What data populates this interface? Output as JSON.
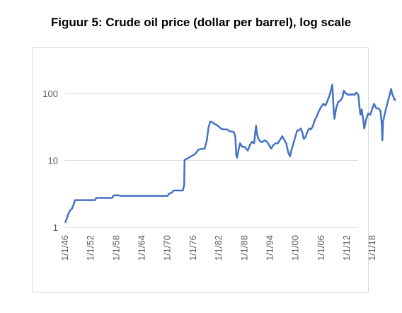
{
  "title": "Figuur 5: Crude oil price (dollar per barrel), log scale",
  "chart_data": {
    "type": "line",
    "title": "Figuur 5: Crude oil price (dollar per barrel), log scale",
    "xlabel": "",
    "ylabel": "",
    "y_scale": "log",
    "ylim": [
      1,
      200
    ],
    "grid": "horizontal",
    "legend": "none",
    "line_color": "#4472c4",
    "y_ticks": [
      {
        "value": 1,
        "label": "1"
      },
      {
        "value": 10,
        "label": "10"
      },
      {
        "value": 100,
        "label": "100"
      }
    ],
    "x_ticks": [
      {
        "value": 1946,
        "label": "1/1/46"
      },
      {
        "value": 1952,
        "label": "1/1/52"
      },
      {
        "value": 1958,
        "label": "1/1/58"
      },
      {
        "value": 1964,
        "label": "1/1/64"
      },
      {
        "value": 1970,
        "label": "1/1/70"
      },
      {
        "value": 1976,
        "label": "1/1/76"
      },
      {
        "value": 1982,
        "label": "1/1/82"
      },
      {
        "value": 1988,
        "label": "1/1/88"
      },
      {
        "value": 1994,
        "label": "1/1/94"
      },
      {
        "value": 2000,
        "label": "1/1/00"
      },
      {
        "value": 2006,
        "label": "1/1/06"
      },
      {
        "value": 2012,
        "label": "1/1/12"
      },
      {
        "value": 2018,
        "label": "1/1/18"
      }
    ],
    "xlim": [
      1946,
      2022
    ],
    "series": [
      {
        "x": [
          1946.0,
          1946.3,
          1946.8,
          1947.2,
          1947.6,
          1948.0,
          1948.3,
          1953.0,
          1953.3,
          1957.0,
          1957.4,
          1958.6,
          1959.0,
          1970.0,
          1970.4,
          1971.0,
          1971.4,
          1973.6,
          1973.9,
          1974.0,
          1975.0,
          1975.5,
          1976.5,
          1977.2,
          1978.0,
          1978.7,
          1979.2,
          1979.6,
          1980.0,
          1980.6,
          1981.0,
          1981.5,
          1982.0,
          1982.5,
          1983.0,
          1983.5,
          1984.0,
          1984.6,
          1985.2,
          1985.6,
          1985.9,
          1986.1,
          1986.3,
          1986.6,
          1987.0,
          1987.5,
          1988.0,
          1988.4,
          1988.8,
          1989.3,
          1989.8,
          1990.3,
          1990.55,
          1990.75,
          1990.95,
          1991.3,
          1991.8,
          1992.3,
          1992.8,
          1993.3,
          1993.8,
          1994.3,
          1994.8,
          1995.3,
          1995.8,
          1996.3,
          1996.9,
          1997.4,
          1997.8,
          1998.3,
          1998.7,
          1999.0,
          1999.4,
          1999.8,
          2000.4,
          2000.8,
          2001.2,
          2001.6,
          2001.9,
          2002.3,
          2002.8,
          2003.2,
          2003.6,
          2004.0,
          2004.5,
          2005.0,
          2005.5,
          2006.0,
          2006.5,
          2007.0,
          2007.5,
          2008.0,
          2008.4,
          2008.6,
          2008.9,
          2009.1,
          2009.5,
          2010.0,
          2010.5,
          2011.0,
          2011.3,
          2011.8,
          2012.3,
          2012.8,
          2013.3,
          2013.8,
          2014.3,
          2014.7,
          2015.0,
          2015.2,
          2015.5,
          2015.8,
          2016.1,
          2016.5,
          2017.0,
          2017.5,
          2018.0,
          2018.4,
          2018.9,
          2019.4,
          2019.9,
          2020.2,
          2020.35,
          2020.5,
          2020.8,
          2021.2,
          2021.5,
          2021.8,
          2022.2,
          2022.4,
          2022.6,
          2022.9,
          2023.2,
          2023.5
        ],
        "values": [
          1.17,
          1.3,
          1.6,
          1.8,
          1.9,
          2.2,
          2.55,
          2.55,
          2.75,
          2.75,
          3.0,
          3.0,
          2.95,
          2.95,
          3.2,
          3.3,
          3.55,
          3.55,
          4.3,
          10.1,
          11.0,
          11.5,
          12.5,
          14.4,
          14.9,
          14.9,
          20,
          31,
          38,
          37,
          35,
          34,
          32,
          30,
          29,
          29,
          29,
          27,
          27,
          26,
          22,
          12,
          11,
          14,
          18,
          16,
          16,
          15,
          14,
          17,
          19,
          18,
          26,
          33,
          25,
          21,
          19,
          19,
          20,
          19,
          17,
          15,
          17,
          18,
          18,
          20,
          23,
          20,
          18,
          13,
          11.5,
          14,
          17,
          21,
          28,
          28,
          30,
          26,
          21,
          22,
          27,
          30,
          29,
          32,
          40,
          46,
          55,
          63,
          70,
          66,
          78,
          95,
          120,
          135,
          60,
          42,
          60,
          75,
          78,
          88,
          110,
          100,
          96,
          96,
          97,
          96,
          103,
          95,
          60,
          48,
          58,
          43,
          30,
          40,
          50,
          48,
          60,
          70,
          60,
          60,
          55,
          35,
          20,
          38,
          46,
          60,
          71,
          83,
          105,
          117,
          100,
          90,
          80,
          82
        ]
      }
    ]
  }
}
